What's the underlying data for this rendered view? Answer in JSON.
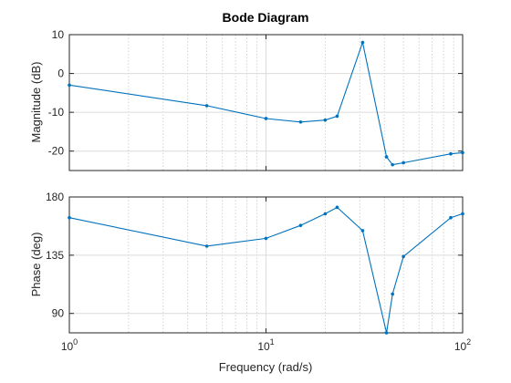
{
  "chart_data": {
    "type": "line",
    "title": "Bode Diagram",
    "xlabel": "Frequency (rad/s)",
    "xscale": "log",
    "xlim": [
      1,
      100
    ],
    "x_ticks": [
      1,
      10,
      100
    ],
    "x_tick_base": "10",
    "x_tick_exponents": [
      "0",
      "1",
      "2"
    ],
    "grid": "on",
    "color": "#0072bd",
    "panels": [
      {
        "ylabel": "Magnitude (dB)",
        "ylim": [
          -25,
          10
        ],
        "yticks": [
          "10",
          "0",
          "-10",
          "-20"
        ],
        "ytick_values": [
          10,
          0,
          -10,
          -20
        ],
        "series": [
          {
            "x": [
              1,
              5,
              10,
              15,
              20,
              23,
              31,
              41,
              44,
              50,
              87,
              100
            ],
            "y": [
              -3,
              -8.3,
              -11.6,
              -12.5,
              -12,
              -11,
              8,
              -21.5,
              -23.5,
              -23,
              -20.7,
              -20.4
            ]
          }
        ]
      },
      {
        "ylabel": "Phase (deg)",
        "ylim": [
          75,
          180
        ],
        "yticks": [
          "180",
          "135",
          "90"
        ],
        "ytick_values": [
          180,
          135,
          90
        ],
        "series": [
          {
            "x": [
              1,
              5,
              10,
              15,
              20,
              23,
              31,
              41,
              44,
              50,
              87,
              100
            ],
            "y": [
              164,
              142,
              148,
              158,
              167,
              172,
              154,
              75,
              105,
              134,
              164,
              167
            ]
          }
        ]
      }
    ]
  }
}
